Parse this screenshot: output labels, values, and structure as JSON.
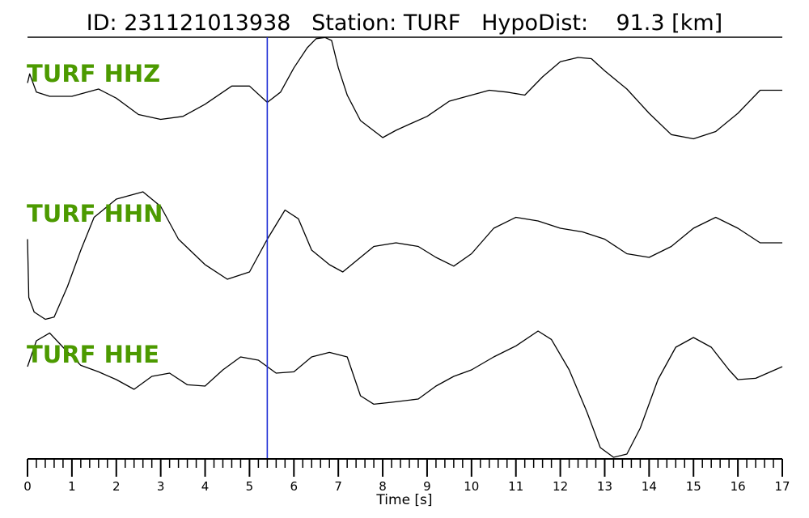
{
  "header": {
    "id_label": "ID:",
    "id_value": "231121013938",
    "station_label": "Station:",
    "station_value": "TURF",
    "hypodist_label": "HypoDist:",
    "hypodist_value": "91.3",
    "hypodist_unit": "[km]"
  },
  "colors": {
    "label": "#4c9a00",
    "marker": "#1f2fd6",
    "trace": "#000000"
  },
  "chart_data": {
    "type": "line",
    "xlabel": "Time [s]",
    "xlim": [
      0,
      17
    ],
    "major_ticks": [
      0,
      1,
      2,
      3,
      4,
      5,
      6,
      7,
      8,
      9,
      10,
      11,
      12,
      13,
      14,
      15,
      16,
      17
    ],
    "minor_tick_step": 0.2,
    "marker_time": 5.4,
    "ylim": [
      -1,
      1
    ],
    "series": [
      {
        "name": "TURF HHZ",
        "x": [
          0,
          0.05,
          0.2,
          0.5,
          1.0,
          1.6,
          2.0,
          2.5,
          3.0,
          3.5,
          4.0,
          4.6,
          5.0,
          5.4,
          5.7,
          6.0,
          6.3,
          6.5,
          6.7,
          6.85,
          7.0,
          7.2,
          7.5,
          8.0,
          8.3,
          8.6,
          9.0,
          9.5,
          10.0,
          10.4,
          10.8,
          11.2,
          11.6,
          12.0,
          12.4,
          12.7,
          13.0,
          13.5,
          14.0,
          14.5,
          15.0,
          15.5,
          16.0,
          16.5,
          17.0
        ],
        "y": [
          0.3,
          0.45,
          0.15,
          0.08,
          0.08,
          0.2,
          0.05,
          -0.22,
          -0.3,
          -0.25,
          -0.05,
          0.25,
          0.25,
          -0.02,
          0.15,
          0.55,
          0.88,
          1.03,
          1.05,
          1.0,
          0.55,
          0.1,
          -0.32,
          -0.6,
          -0.48,
          -0.38,
          -0.25,
          0.0,
          0.1,
          0.18,
          0.15,
          0.1,
          0.4,
          0.65,
          0.72,
          0.7,
          0.5,
          0.2,
          -0.2,
          -0.55,
          -0.62,
          -0.5,
          -0.2,
          0.18,
          0.18
        ]
      },
      {
        "name": "TURF HHN",
        "x": [
          0,
          0.03,
          0.15,
          0.4,
          0.6,
          0.9,
          1.2,
          1.5,
          2.0,
          2.6,
          3.0,
          3.4,
          4.0,
          4.5,
          5.0,
          5.4,
          5.8,
          6.1,
          6.4,
          6.8,
          7.1,
          7.4,
          7.8,
          8.3,
          8.8,
          9.2,
          9.6,
          10.0,
          10.5,
          11.0,
          11.5,
          12.0,
          12.5,
          13.0,
          13.5,
          14.0,
          14.5,
          15.0,
          15.5,
          16.0,
          16.5,
          17.0
        ],
        "y": [
          0.05,
          -0.75,
          -0.95,
          -1.05,
          -1.02,
          -0.6,
          -0.1,
          0.35,
          0.6,
          0.7,
          0.5,
          0.05,
          -0.3,
          -0.5,
          -0.4,
          0.05,
          0.45,
          0.33,
          -0.1,
          -0.3,
          -0.4,
          -0.25,
          -0.05,
          0.0,
          -0.05,
          -0.2,
          -0.32,
          -0.15,
          0.2,
          0.35,
          0.3,
          0.2,
          0.15,
          0.05,
          -0.15,
          -0.2,
          -0.05,
          0.2,
          0.35,
          0.2,
          0.0,
          0.0
        ]
      },
      {
        "name": "TURF HHE",
        "x": [
          0,
          0.2,
          0.5,
          0.8,
          1.2,
          1.6,
          2.0,
          2.4,
          2.8,
          3.2,
          3.6,
          4.0,
          4.4,
          4.8,
          5.2,
          5.6,
          6.0,
          6.4,
          6.8,
          7.2,
          7.5,
          7.8,
          8.2,
          8.8,
          9.2,
          9.6,
          10.0,
          10.5,
          11.0,
          11.5,
          11.8,
          12.2,
          12.6,
          12.9,
          13.2,
          13.5,
          13.8,
          14.2,
          14.6,
          15.0,
          15.4,
          15.8,
          16.0,
          16.4,
          17.0
        ],
        "y": [
          0.4,
          0.8,
          0.92,
          0.7,
          0.42,
          0.32,
          0.2,
          0.05,
          0.25,
          0.3,
          0.12,
          0.1,
          0.35,
          0.55,
          0.5,
          0.3,
          0.32,
          0.55,
          0.62,
          0.55,
          -0.05,
          -0.18,
          -0.15,
          -0.1,
          0.1,
          0.25,
          0.35,
          0.55,
          0.72,
          0.95,
          0.82,
          0.35,
          -0.3,
          -0.85,
          -1.0,
          -0.95,
          -0.55,
          0.2,
          0.7,
          0.85,
          0.7,
          0.35,
          0.2,
          0.22,
          0.4
        ]
      }
    ]
  }
}
